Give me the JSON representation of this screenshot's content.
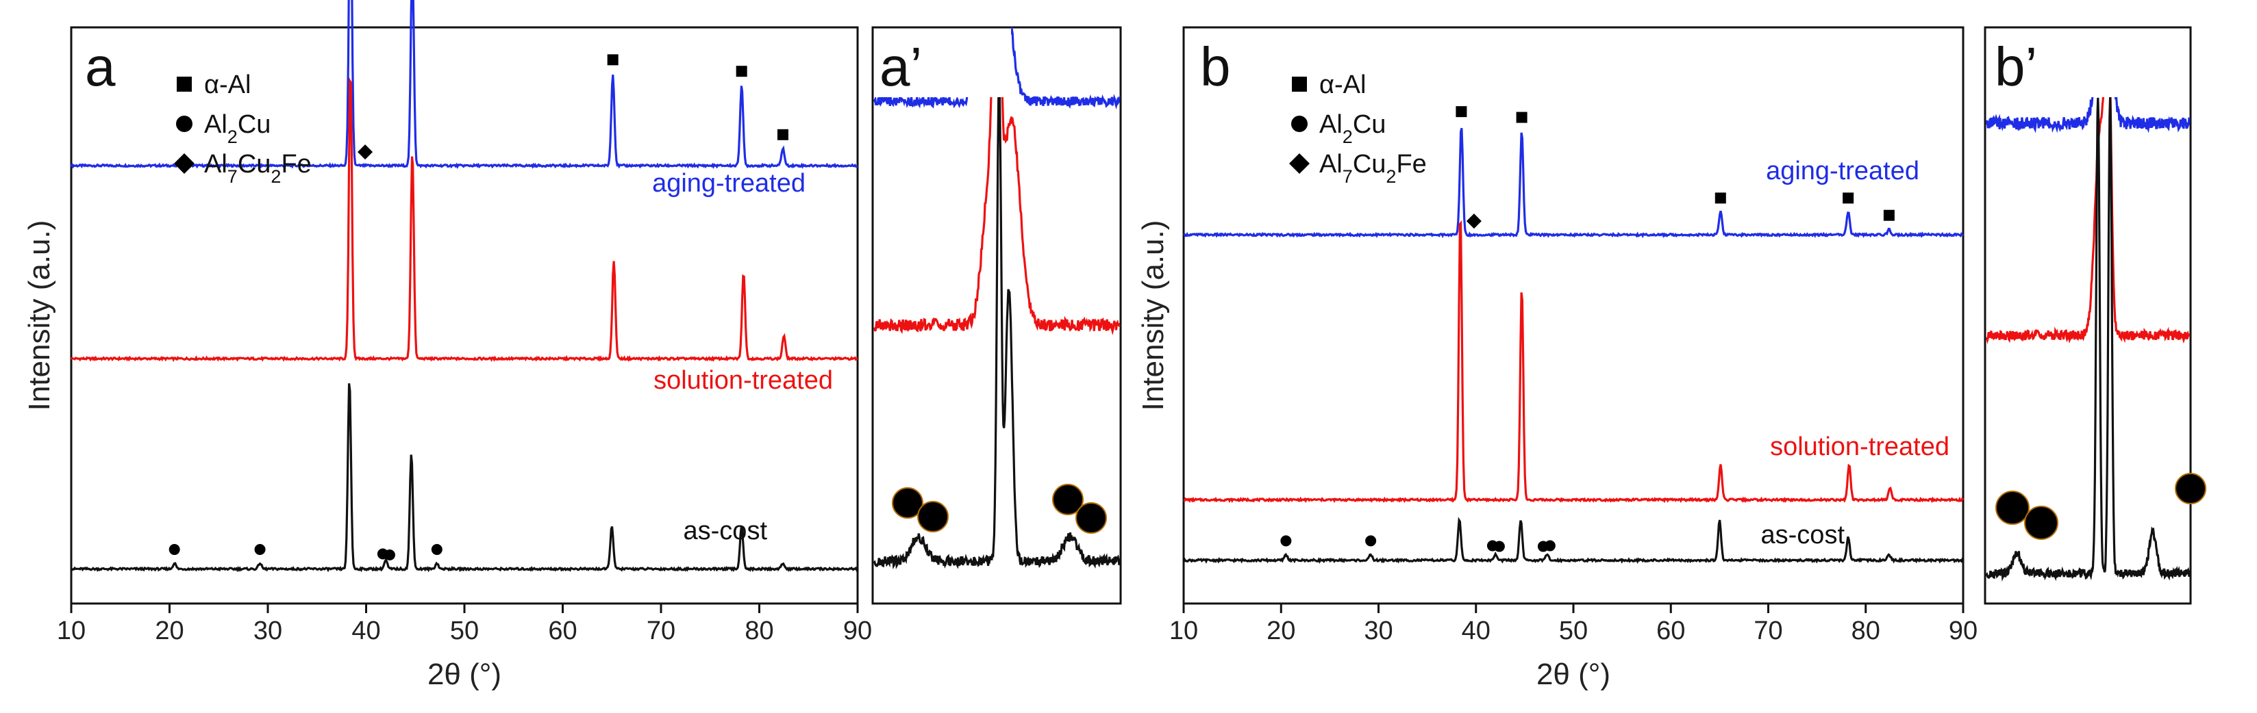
{
  "figure": {
    "panels": [
      "a",
      "a’",
      "b",
      "b’"
    ],
    "colors": {
      "aging": "#1f2de6",
      "solution": "#ee1111",
      "ascast": "#111111"
    }
  },
  "chart_data": [
    {
      "id": "a",
      "type": "line",
      "panel_label": "a",
      "xlabel": "2θ (°)",
      "ylabel": "Intensity (a.u.)",
      "xlim": [
        10,
        90
      ],
      "xticks": [
        10,
        20,
        30,
        40,
        50,
        60,
        70,
        80,
        90
      ],
      "xtick_labels": [
        "10",
        "20",
        "30",
        "40",
        "50",
        "60",
        "70",
        "80",
        "90"
      ],
      "legend": [
        {
          "symbol": "square",
          "label": "α-Al"
        },
        {
          "symbol": "circle",
          "label": "Al",
          "sub": "2",
          "rest": "Cu"
        },
        {
          "symbol": "diamond",
          "label": "Al",
          "sub": "7",
          "mid": "Cu",
          "sub2": "2",
          "rest": "Fe"
        }
      ],
      "series": [
        {
          "name": "aging-treated",
          "color": "#1f2de6",
          "baseline": 0.76,
          "peaks": [
            [
              38.4,
              0.5
            ],
            [
              44.7,
              0.36
            ],
            [
              65.1,
              0.16
            ],
            [
              78.2,
              0.14
            ],
            [
              82.4,
              0.03
            ]
          ],
          "markers": [
            [
              "square",
              38.4
            ],
            [
              "diamond",
              39.9
            ],
            [
              "square",
              44.7
            ],
            [
              "square",
              65.1
            ],
            [
              "square",
              78.2
            ],
            [
              "square",
              82.4
            ]
          ]
        },
        {
          "name": "solution-treated",
          "color": "#ee1111",
          "baseline": 0.425,
          "peaks": [
            [
              38.4,
              0.5
            ],
            [
              44.7,
              0.36
            ],
            [
              65.2,
              0.17
            ],
            [
              78.4,
              0.15
            ],
            [
              82.5,
              0.04
            ]
          ],
          "markers": []
        },
        {
          "name": "as-cost",
          "color": "#111111",
          "baseline": 0.06,
          "peaks": [
            [
              20.5,
              0.01
            ],
            [
              29.2,
              0.01
            ],
            [
              38.3,
              0.33
            ],
            [
              42.0,
              0.015
            ],
            [
              44.6,
              0.2
            ],
            [
              47.2,
              0.01
            ],
            [
              65.0,
              0.075
            ],
            [
              78.2,
              0.075
            ],
            [
              82.4,
              0.01
            ]
          ],
          "markers": [
            [
              "circle",
              20.5
            ],
            [
              "circle",
              29.2
            ],
            [
              "circle",
              41.7
            ],
            [
              "circle",
              42.4
            ],
            [
              "circle",
              47.2
            ]
          ]
        }
      ]
    },
    {
      "id": "a-zoom",
      "type": "line",
      "panel_label": "a’",
      "series": [
        "aging-treated",
        "solution-treated",
        "as-cost"
      ]
    },
    {
      "id": "b",
      "type": "line",
      "panel_label": "b",
      "xlabel": "2θ (°)",
      "ylabel": "Intensity (a.u.)",
      "xlim": [
        10,
        90
      ],
      "xticks": [
        10,
        20,
        30,
        40,
        50,
        60,
        70,
        80,
        90
      ],
      "xtick_labels": [
        "10",
        "20",
        "30",
        "40",
        "50",
        "60",
        "70",
        "80",
        "90"
      ],
      "legend": [
        {
          "symbol": "square",
          "label": "α-Al"
        },
        {
          "symbol": "circle",
          "label": "Al",
          "sub": "2",
          "rest": "Cu"
        },
        {
          "symbol": "diamond",
          "label": "Al",
          "sub": "7",
          "mid": "Cu",
          "sub2": "2",
          "rest": "Fe"
        }
      ],
      "series": [
        {
          "name": "aging-treated",
          "color": "#1f2de6",
          "baseline": 0.64,
          "peaks": [
            [
              38.5,
              0.19
            ],
            [
              44.7,
              0.18
            ],
            [
              65.1,
              0.04
            ],
            [
              78.2,
              0.04
            ],
            [
              82.4,
              0.01
            ]
          ],
          "markers": [
            [
              "square",
              38.5
            ],
            [
              "diamond",
              39.8
            ],
            [
              "square",
              44.7
            ],
            [
              "square",
              65.1
            ],
            [
              "square",
              78.2
            ],
            [
              "square",
              82.4
            ]
          ]
        },
        {
          "name": "solution-treated",
          "color": "#ee1111",
          "baseline": 0.18,
          "peaks": [
            [
              38.4,
              0.5
            ],
            [
              44.7,
              0.37
            ],
            [
              65.1,
              0.06
            ],
            [
              78.3,
              0.06
            ],
            [
              82.5,
              0.02
            ]
          ],
          "markers": []
        },
        {
          "name": "as-cost",
          "color": "#111111",
          "baseline": 0.075,
          "peaks": [
            [
              20.5,
              0.01
            ],
            [
              29.2,
              0.01
            ],
            [
              38.3,
              0.07
            ],
            [
              42.0,
              0.01
            ],
            [
              44.6,
              0.07
            ],
            [
              47.3,
              0.01
            ],
            [
              65.0,
              0.07
            ],
            [
              78.2,
              0.04
            ],
            [
              82.4,
              0.01
            ]
          ],
          "markers": [
            [
              "circle",
              20.5
            ],
            [
              "circle",
              29.2
            ],
            [
              "circle",
              41.7
            ],
            [
              "circle",
              42.4
            ],
            [
              "circle",
              46.9
            ],
            [
              "circle",
              47.6
            ]
          ]
        }
      ]
    },
    {
      "id": "b-zoom",
      "type": "line",
      "panel_label": "b’",
      "series": [
        "aging-treated",
        "solution-treated",
        "as-cost"
      ]
    }
  ]
}
